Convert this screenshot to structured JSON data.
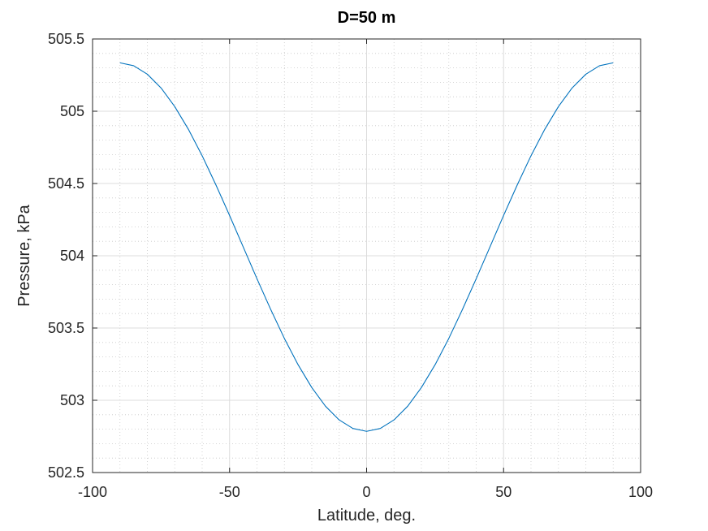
{
  "chart_data": {
    "type": "line",
    "title": "D=50 m",
    "xlabel": "Latitude, deg.",
    "ylabel": "Pressure, kPa",
    "xlim": [
      -100,
      100
    ],
    "ylim": [
      502.5,
      505.5
    ],
    "xticks": [
      -100,
      -50,
      0,
      50,
      100
    ],
    "xtick_labels": [
      "-100",
      "-50",
      "0",
      "50",
      "100"
    ],
    "yticks": [
      502.5,
      503,
      503.5,
      504,
      504.5,
      505,
      505.5
    ],
    "ytick_labels": [
      "502.5",
      "503",
      "503.5",
      "504",
      "504.5",
      "505",
      "505.5"
    ],
    "grid": true,
    "minor_grid": true,
    "series": [
      {
        "color": "#0072bd",
        "x": [
          -90,
          -85,
          -80,
          -75,
          -70,
          -65,
          -60,
          -55,
          -50,
          -45,
          -40,
          -35,
          -30,
          -25,
          -20,
          -15,
          -10,
          -5,
          0,
          5,
          10,
          15,
          20,
          25,
          30,
          35,
          40,
          45,
          50,
          55,
          60,
          65,
          70,
          75,
          80,
          85,
          90
        ],
        "y": [
          505.335,
          505.315,
          505.256,
          505.161,
          505.032,
          504.874,
          504.692,
          504.491,
          504.279,
          504.06,
          503.841,
          503.629,
          503.428,
          503.246,
          503.088,
          502.959,
          502.864,
          502.805,
          502.785,
          502.805,
          502.864,
          502.959,
          503.088,
          503.246,
          503.428,
          503.629,
          503.841,
          504.06,
          504.279,
          504.491,
          504.692,
          504.874,
          505.032,
          505.161,
          505.256,
          505.315,
          505.335
        ]
      }
    ]
  }
}
